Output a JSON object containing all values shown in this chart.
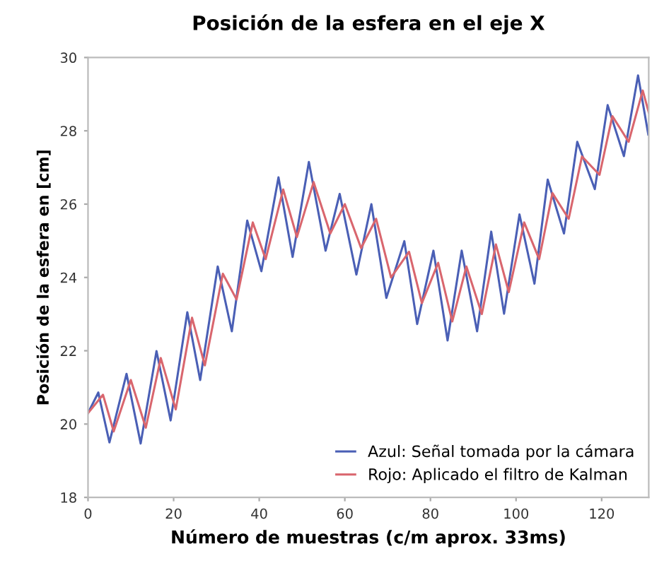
{
  "chart_data": {
    "type": "line",
    "title": "Posición de la esfera en el eje X",
    "xlabel": "Número de muestras (c/m aprox. 33ms)",
    "ylabel": "Posición de la esfera en [cm]",
    "xlim": [
      0,
      131
    ],
    "xticks": [
      0,
      20,
      40,
      60,
      80,
      100,
      120
    ],
    "ylim": [
      18,
      30
    ],
    "yticks": [
      18,
      20,
      22,
      24,
      26,
      28,
      30
    ],
    "grid": false,
    "legend": "bottom right",
    "marker": "none",
    "line_style": "solid",
    "series": [
      {
        "name": "Azul: Señal tomada por la cámara",
        "color": "#4a5fb5",
        "x": [
          0,
          2.4,
          5.0,
          9.0,
          12.3,
          16.0,
          19.3,
          23.2,
          26.2,
          30.3,
          33.6,
          37.2,
          40.5,
          44.5,
          47.8,
          51.6,
          55.5,
          58.8,
          62.7,
          66.2,
          69.7,
          73.9,
          76.9,
          80.7,
          84.0,
          87.3,
          90.9,
          94.2,
          97.2,
          100.8,
          104.3,
          107.4,
          111.2,
          114.3,
          118.4,
          121.4,
          125.2,
          128.5,
          130.9
        ],
        "values": [
          20.3,
          20.86,
          19.5,
          21.37,
          19.47,
          21.99,
          20.1,
          23.05,
          21.2,
          24.3,
          22.53,
          25.55,
          24.17,
          26.73,
          24.56,
          27.15,
          24.73,
          26.28,
          24.08,
          26.0,
          23.44,
          24.99,
          22.73,
          24.73,
          22.28,
          24.73,
          22.53,
          25.25,
          23.01,
          25.72,
          23.83,
          26.67,
          25.2,
          27.7,
          26.41,
          28.7,
          27.31,
          29.51,
          27.9
        ]
      },
      {
        "name": "Rojo: Aplicado el filtro de Kalman",
        "color": "#d9666e",
        "x": [
          0,
          3.5,
          6,
          10,
          13.5,
          17,
          20.5,
          24.3,
          27.3,
          31.5,
          34.7,
          38.5,
          41.5,
          45.6,
          48.8,
          52.7,
          56.6,
          60,
          63.8,
          67.3,
          70.8,
          75,
          78,
          81.8,
          85.1,
          88.4,
          92,
          95.3,
          98.3,
          101.9,
          105.4,
          108.5,
          112.3,
          115.4,
          119.5,
          122.5,
          126.3,
          129.6,
          131
        ],
        "values": [
          20.3,
          20.8,
          19.8,
          21.2,
          19.9,
          21.8,
          20.4,
          22.9,
          21.6,
          24.1,
          23.4,
          25.5,
          24.5,
          26.4,
          25.1,
          26.6,
          25.2,
          26.0,
          24.8,
          25.6,
          24.0,
          24.7,
          23.3,
          24.4,
          22.8,
          24.3,
          23.0,
          24.9,
          23.6,
          25.5,
          24.5,
          26.3,
          25.6,
          27.3,
          26.8,
          28.4,
          27.7,
          29.1,
          28.5
        ]
      }
    ]
  }
}
